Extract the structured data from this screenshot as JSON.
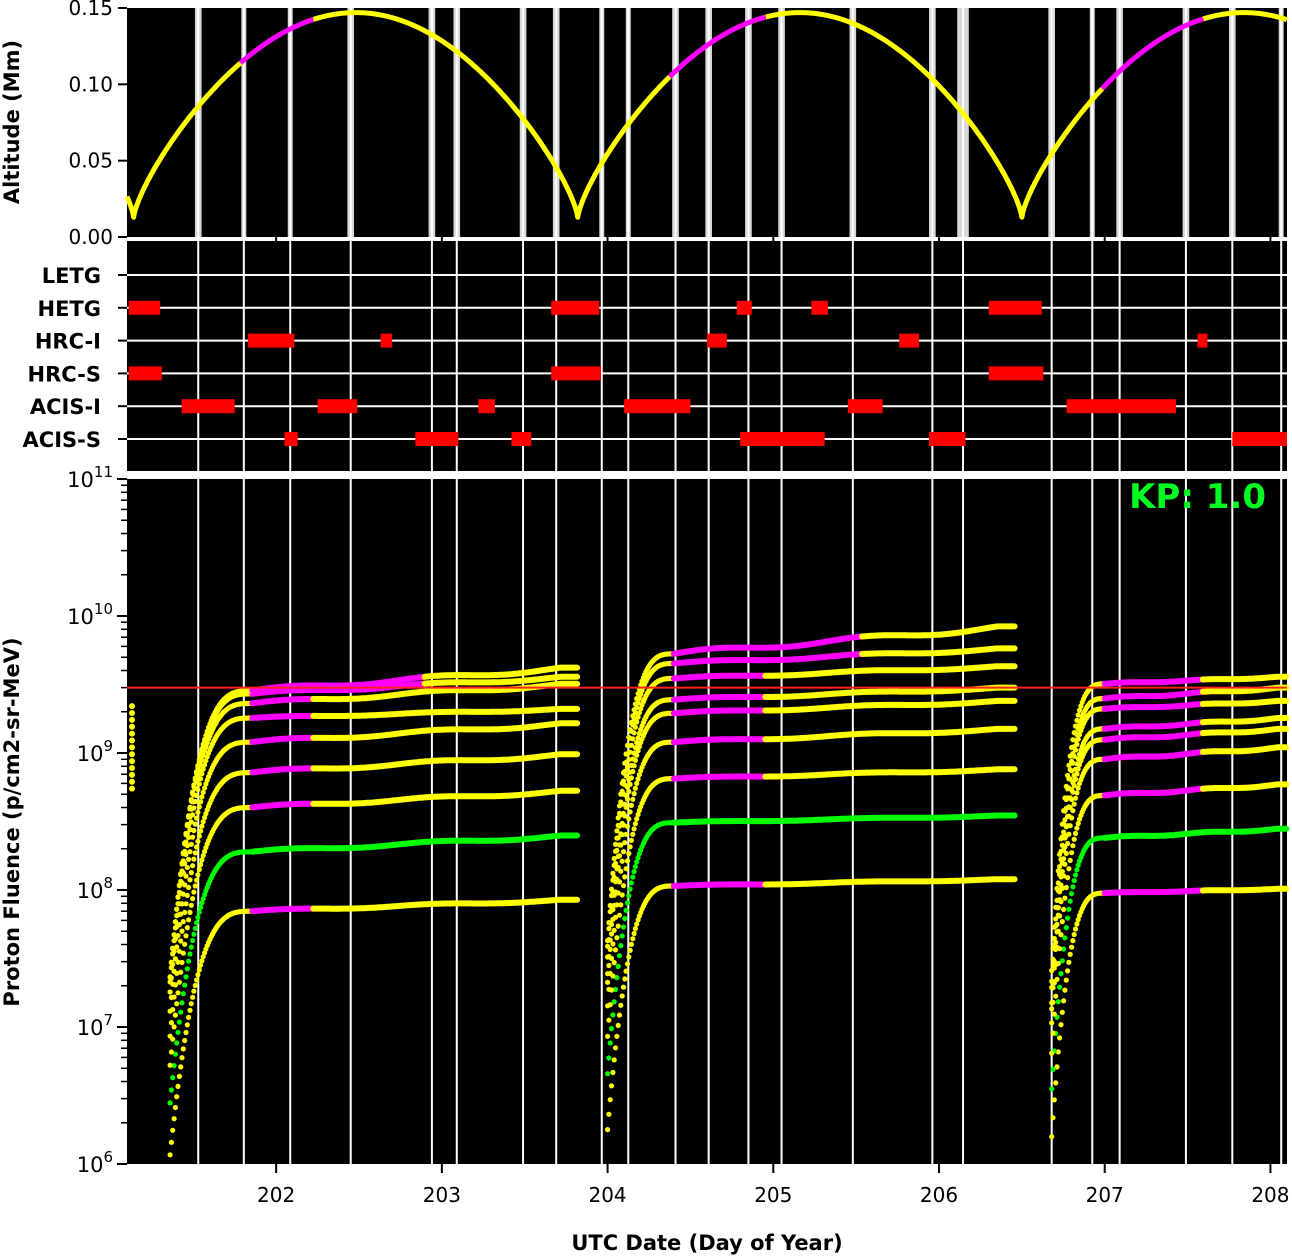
{
  "chart_data": [
    {
      "panel": "altitude",
      "type": "line",
      "ylabel": "Altitude (Mm)",
      "ylim": [
        0,
        0.15
      ],
      "yticks": [
        "0.00",
        "0.05",
        "0.10",
        "0.15"
      ],
      "xlim": [
        201.1,
        208.1
      ],
      "colors": {
        "background": "#000000",
        "orbit": "#ffff00",
        "highlight": "#ff00ff",
        "comm_band": "#d8d8d8"
      },
      "orbit_perigees_day": [
        201.14,
        203.82,
        206.46
      ],
      "orbit_apogee_mm": 0.147,
      "orbit_perigee_mm": 0.013,
      "magenta_segments_day": [
        [
          201.78,
          202.22
        ],
        [
          204.37,
          204.95
        ],
        [
          206.98,
          207.59
        ]
      ],
      "comm_passes_day": [
        [
          201.51,
          201.55
        ],
        [
          201.79,
          201.82
        ],
        [
          202.07,
          202.1
        ],
        [
          202.43,
          202.47
        ],
        [
          202.92,
          202.96
        ],
        [
          203.07,
          203.11
        ],
        [
          203.47,
          203.51
        ],
        [
          203.67,
          203.71
        ],
        [
          203.95,
          203.98
        ],
        [
          204.11,
          204.14
        ],
        [
          204.39,
          204.43
        ],
        [
          204.59,
          204.63
        ],
        [
          204.83,
          204.87
        ],
        [
          205.03,
          205.07
        ],
        [
          205.46,
          205.5
        ],
        [
          205.94,
          205.98
        ],
        [
          206.11,
          206.18
        ],
        [
          206.66,
          206.7
        ],
        [
          206.91,
          206.94
        ],
        [
          207.07,
          207.11
        ],
        [
          207.47,
          207.51
        ],
        [
          207.75,
          207.79
        ],
        [
          208.05,
          208.08
        ]
      ]
    },
    {
      "panel": "instruments",
      "type": "timeline",
      "rows": [
        "LETG",
        "HETG",
        "HRC-I",
        "HRC-S",
        "ACIS-I",
        "ACIS-S"
      ],
      "bar_color": "#ff0000",
      "intervals": {
        "LETG": [],
        "HETG": [
          [
            201.11,
            201.3
          ],
          [
            203.66,
            203.95
          ],
          [
            204.78,
            204.87
          ],
          [
            205.23,
            205.33
          ],
          [
            206.3,
            206.62
          ]
        ],
        "HRC-I": [
          [
            201.83,
            202.11
          ],
          [
            202.63,
            202.7
          ],
          [
            204.6,
            204.72
          ],
          [
            205.76,
            205.88
          ],
          [
            207.56,
            207.62
          ]
        ],
        "HRC-S": [
          [
            201.11,
            201.31
          ],
          [
            203.66,
            203.96
          ],
          [
            206.3,
            206.63
          ]
        ],
        "ACIS-I": [
          [
            201.43,
            201.75
          ],
          [
            202.25,
            202.49
          ],
          [
            203.22,
            203.32
          ],
          [
            204.1,
            204.5
          ],
          [
            205.45,
            205.66
          ],
          [
            206.77,
            207.43
          ]
        ],
        "ACIS-S": [
          [
            202.05,
            202.13
          ],
          [
            202.84,
            203.1
          ],
          [
            203.42,
            203.54
          ],
          [
            204.8,
            205.31
          ],
          [
            205.94,
            206.16
          ],
          [
            207.77,
            208.1
          ]
        ]
      }
    },
    {
      "panel": "fluence",
      "type": "scatter",
      "ylabel": "Proton Fluence (p/cm2-sr-MeV)",
      "xlabel": "UTC Date (Day of Year)",
      "xticks": [
        202,
        203,
        204,
        205,
        206,
        207,
        208
      ],
      "xlim": [
        201.1,
        208.1
      ],
      "ylim_log10": [
        6,
        11
      ],
      "ytick_exponents": [
        6,
        7,
        8,
        9,
        10,
        11
      ],
      "threshold": 3000000000,
      "threshold_color": "#ff2020",
      "annotation": "KP: 1.0",
      "annotation_color": "#00ff20",
      "colors": {
        "yellow": "#ffff00",
        "magenta": "#ff00ff",
        "green": "#00ff00"
      },
      "orbits": [
        {
          "start": 201.38,
          "end": 203.82,
          "plateau_day": 201.85,
          "magenta_day": [
            201.78,
            202.22
          ],
          "series": [
            {
              "p": 70000000,
              "e": 85000000,
              "color": "yellow"
            },
            {
              "p": 190000000,
              "e": 250000000,
              "color": "green"
            },
            {
              "p": 400000000,
              "e": 530000000,
              "color": "yellow"
            },
            {
              "p": 720000000,
              "e": 980000000,
              "color": "yellow"
            },
            {
              "p": 1200000000,
              "e": 1650000000,
              "color": "yellow"
            },
            {
              "p": 1800000000,
              "e": 2100000000,
              "color": "yellow"
            },
            {
              "p": 2300000000,
              "e": 3200000000,
              "color": "yellow"
            },
            {
              "p": 2700000000,
              "e": 3600000000,
              "color": "yellow"
            },
            {
              "p": 2850000000,
              "e": 4200000000,
              "color": "yellow"
            }
          ]
        },
        {
          "start": 204.02,
          "end": 206.46,
          "plateau_day": 204.4,
          "magenta_day": [
            204.37,
            204.95
          ],
          "series": [
            {
              "p": 107000000,
              "e": 120000000,
              "color": "yellow"
            },
            {
              "p": 310000000,
              "e": 350000000,
              "color": "green"
            },
            {
              "p": 650000000,
              "e": 760000000,
              "color": "yellow"
            },
            {
              "p": 1200000000,
              "e": 1500000000,
              "color": "yellow"
            },
            {
              "p": 1950000000,
              "e": 2400000000,
              "color": "yellow"
            },
            {
              "p": 2450000000,
              "e": 3000000000,
              "color": "yellow"
            },
            {
              "p": 3500000000,
              "e": 4300000000,
              "color": "yellow"
            },
            {
              "p": 4500000000,
              "e": 5800000000,
              "color": "yellow"
            },
            {
              "p": 5300000000,
              "e": 8400000000,
              "color": "yellow"
            }
          ]
        },
        {
          "start": 206.7,
          "end": 208.1,
          "plateau_day": 207.0,
          "magenta_day": [
            206.98,
            207.59
          ],
          "series": [
            {
              "p": 95000000,
              "e": 102000000,
              "color": "yellow"
            },
            {
              "p": 240000000,
              "e": 280000000,
              "color": "green"
            },
            {
              "p": 490000000,
              "e": 590000000,
              "color": "yellow"
            },
            {
              "p": 900000000,
              "e": 1100000000,
              "color": "yellow"
            },
            {
              "p": 1250000000,
              "e": 1500000000,
              "color": "yellow"
            },
            {
              "p": 1500000000,
              "e": 1800000000,
              "color": "yellow"
            },
            {
              "p": 2100000000,
              "e": 2400000000,
              "color": "yellow"
            },
            {
              "p": 2500000000,
              "e": 3000000000,
              "color": "yellow"
            },
            {
              "p": 3200000000,
              "e": 3600000000,
              "color": "yellow"
            }
          ]
        }
      ],
      "pre_segment": {
        "day": 201.13,
        "from": 550000000,
        "to": 2200000000
      }
    }
  ]
}
